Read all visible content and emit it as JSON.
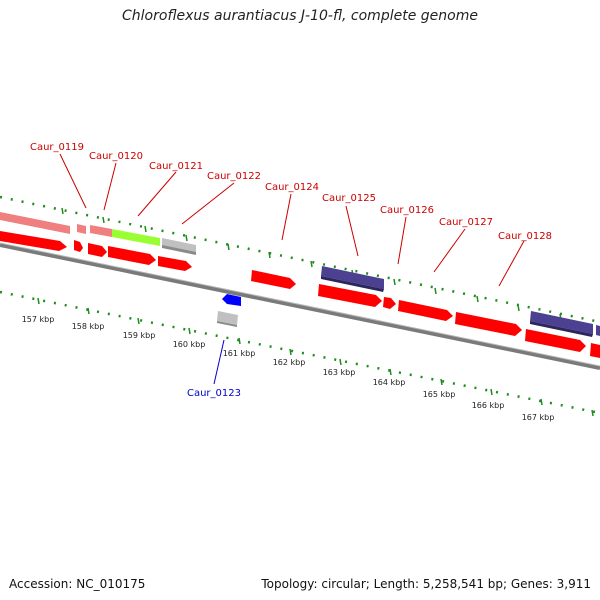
{
  "title": "Chloroflexus aurantiacus J-10-fl, complete genome",
  "footer": {
    "accession": "Accession: NC_010175",
    "summary": "Topology: circular; Length: 5,258,541 bp; Genes: 3,911"
  },
  "colors": {
    "forward_gene": "#ff0000",
    "forward_gene_faded": "#f08080",
    "reverse_gene": "#0000ff",
    "rna_gene": "#4b4190",
    "highlight_gene": "#99ff33",
    "pseudo_gene": "#c0c0c0",
    "tick": "#1e8c1e",
    "label_forward": "#cc0000",
    "label_reverse": "#0000cc",
    "backbone": "#7a7a7a"
  },
  "gene_labels": [
    {
      "id": "caur-0119",
      "text": "Caur_0119",
      "strand": "forward"
    },
    {
      "id": "caur-0120",
      "text": "Caur_0120",
      "strand": "forward"
    },
    {
      "id": "caur-0121",
      "text": "Caur_0121",
      "strand": "forward"
    },
    {
      "id": "caur-0122",
      "text": "Caur_0122",
      "strand": "forward"
    },
    {
      "id": "caur-0124",
      "text": "Caur_0124",
      "strand": "forward"
    },
    {
      "id": "caur-0125",
      "text": "Caur_0125",
      "strand": "forward"
    },
    {
      "id": "caur-0126",
      "text": "Caur_0126",
      "strand": "forward"
    },
    {
      "id": "caur-0127",
      "text": "Caur_0127",
      "strand": "forward"
    },
    {
      "id": "caur-0128",
      "text": "Caur_0128",
      "strand": "forward"
    },
    {
      "id": "caur-0123",
      "text": "Caur_0123",
      "strand": "reverse"
    }
  ],
  "kbp_ticks": [
    "157 kbp",
    "158 kbp",
    "159 kbp",
    "160 kbp",
    "161 kbp",
    "162 kbp",
    "163 kbp",
    "164 kbp",
    "165 kbp",
    "166 kbp",
    "167 kbp"
  ]
}
